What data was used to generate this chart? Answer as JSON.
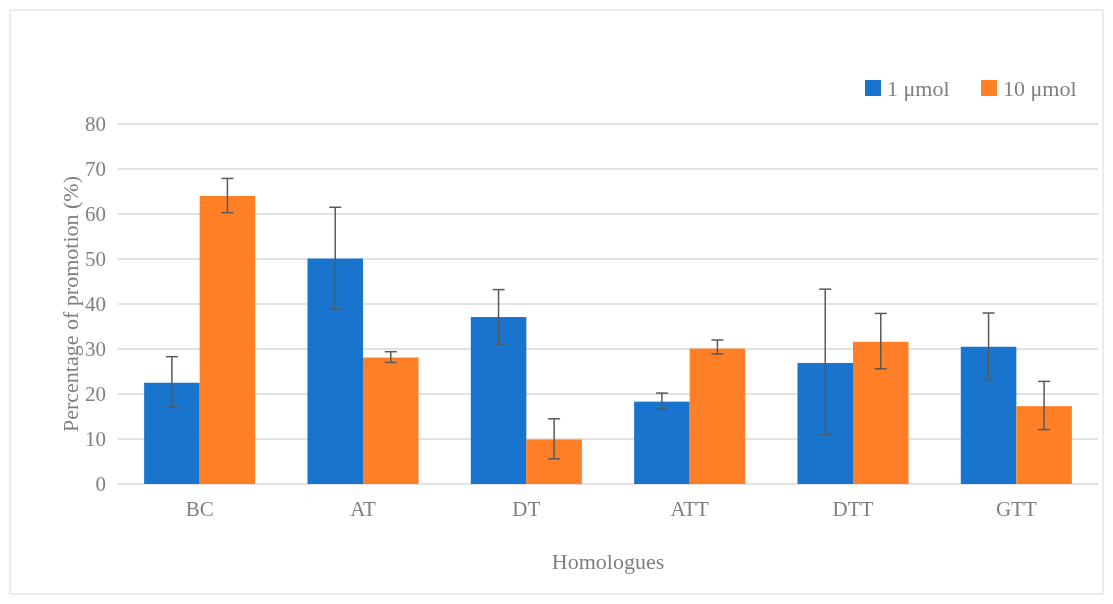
{
  "chart_data": {
    "type": "bar",
    "xlabel": "Homologues",
    "ylabel": "Percentage of promotion (%)",
    "categories": [
      "BC",
      "AT",
      "DT",
      "ATT",
      "DTT",
      "GTT"
    ],
    "series": [
      {
        "name": "1 μmol",
        "color": "#1874cd",
        "values": [
          22.5,
          50.1,
          37.1,
          18.3,
          26.9,
          30.5
        ],
        "errors": [
          [
            17.1,
            28.3
          ],
          [
            38.9,
            61.5
          ],
          [
            31.1,
            43.2
          ],
          [
            16.6,
            20.2
          ],
          [
            10.9,
            43.3
          ],
          [
            23.2,
            38.0
          ]
        ]
      },
      {
        "name": "10 μmol",
        "color": "#ff7f27",
        "values": [
          64.0,
          28.1,
          9.9,
          30.1,
          31.6,
          17.3
        ],
        "errors": [
          [
            60.3,
            67.9
          ],
          [
            27.0,
            29.4
          ],
          [
            5.6,
            14.5
          ],
          [
            28.9,
            32.0
          ],
          [
            25.6,
            37.9
          ],
          [
            12.1,
            22.8
          ]
        ]
      }
    ],
    "ylim": [
      0,
      80
    ],
    "yticks": [
      0,
      10,
      20,
      30,
      40,
      50,
      60,
      70,
      80
    ],
    "grid": "y",
    "legend": "top right"
  }
}
